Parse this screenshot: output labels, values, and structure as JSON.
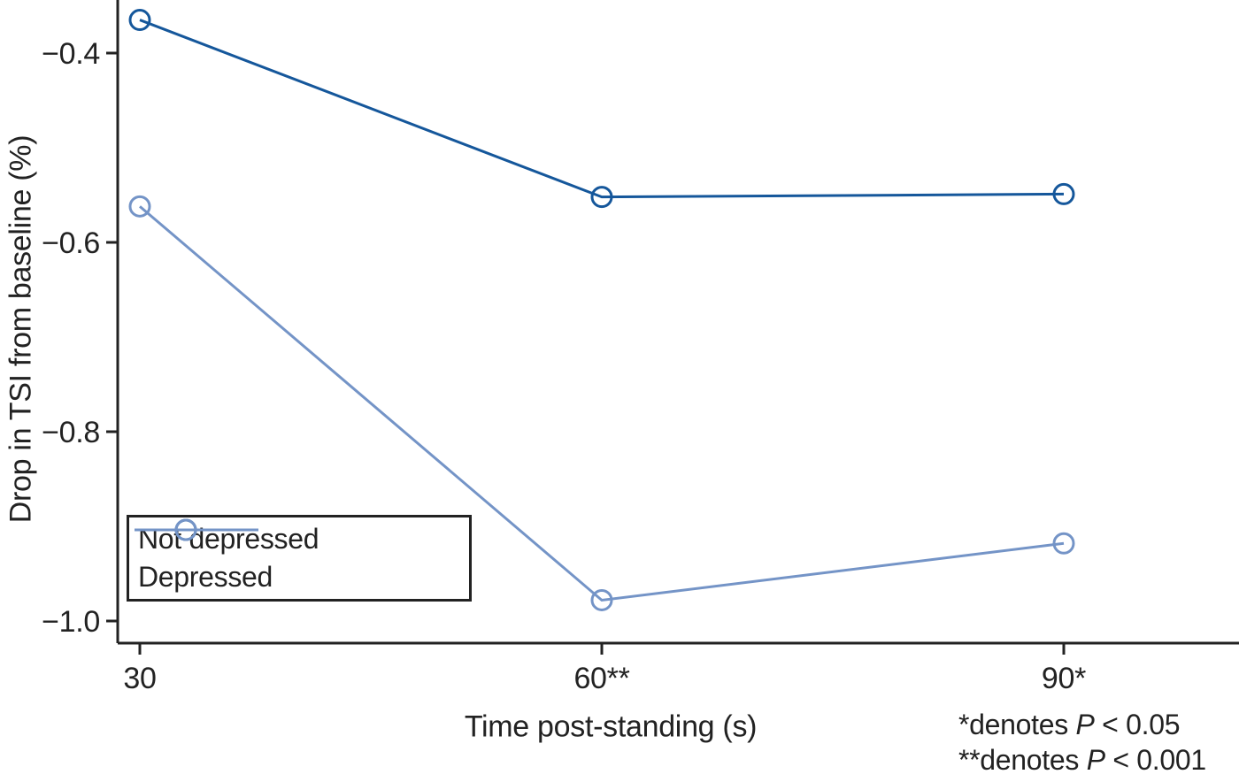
{
  "chart_data": {
    "type": "line",
    "title": "",
    "xlabel": "Time post-standing (s)",
    "ylabel": "Drop in TSI from baseline (%)",
    "x": [
      30,
      60,
      90
    ],
    "x_tick_labels": [
      "30",
      "60**",
      "90*"
    ],
    "y_ticks": [
      -0.4,
      -0.6,
      -0.8,
      -1.0
    ],
    "y_tick_labels": [
      "−0.4",
      "−0.6",
      "−0.8",
      "−1.0"
    ],
    "xlim": [
      28.6,
      101.4
    ],
    "ylim": [
      -1.025,
      -0.345
    ],
    "grid": false,
    "legend_position": "lower-left-inside",
    "marker": "open-circle",
    "series": [
      {
        "name": "Not depressed",
        "color": "#15579b",
        "values": [
          -0.365,
          -0.552,
          -0.549
        ]
      },
      {
        "name": "Depressed",
        "color": "#7494c7",
        "values": [
          -0.562,
          -0.978,
          -0.918
        ]
      }
    ]
  },
  "annotations": [
    {
      "prefix": "*denotes ",
      "var": "P",
      "suffix": " < 0.05"
    },
    {
      "prefix": "**denotes ",
      "var": "P",
      "suffix": " < 0.001"
    }
  ],
  "colors": {
    "axis": "#222222",
    "text": "#222222",
    "background": "#ffffff"
  }
}
